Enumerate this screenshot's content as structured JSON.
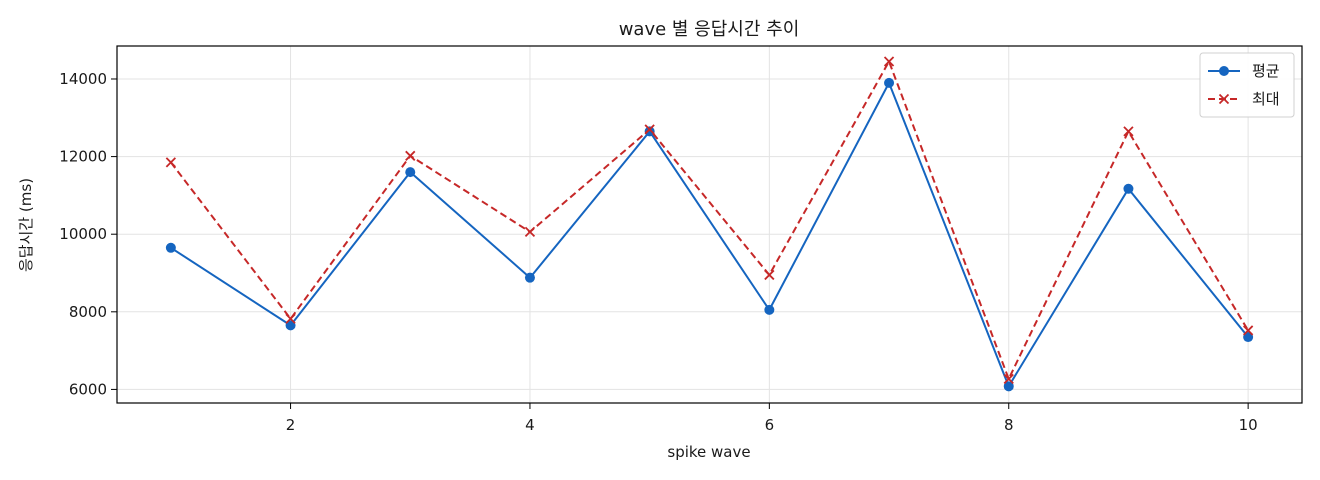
{
  "chart_data": {
    "type": "line",
    "title": "wave 별 응답시간 추이",
    "xlabel": "spike wave",
    "ylabel": "응답시간 (ms)",
    "x": [
      1,
      2,
      3,
      4,
      5,
      6,
      7,
      8,
      9,
      10
    ],
    "xlim": [
      0.55,
      10.45
    ],
    "ylim": [
      5650,
      14850
    ],
    "xticks": [
      2,
      4,
      6,
      8,
      10
    ],
    "yticks": [
      6000,
      8000,
      10000,
      12000,
      14000
    ],
    "grid": true,
    "legend_position": "top-right",
    "series": [
      {
        "name": "평균",
        "color": "#1565c0",
        "line_style": "solid",
        "marker": "circle",
        "values": [
          9650,
          7650,
          11600,
          8880,
          12650,
          8050,
          13900,
          6080,
          11170,
          7350
        ]
      },
      {
        "name": "최대",
        "color": "#c62828",
        "line_style": "dashed",
        "marker": "x",
        "values": [
          11850,
          7820,
          12020,
          10060,
          12700,
          8950,
          14450,
          6270,
          12650,
          7520
        ]
      }
    ]
  }
}
